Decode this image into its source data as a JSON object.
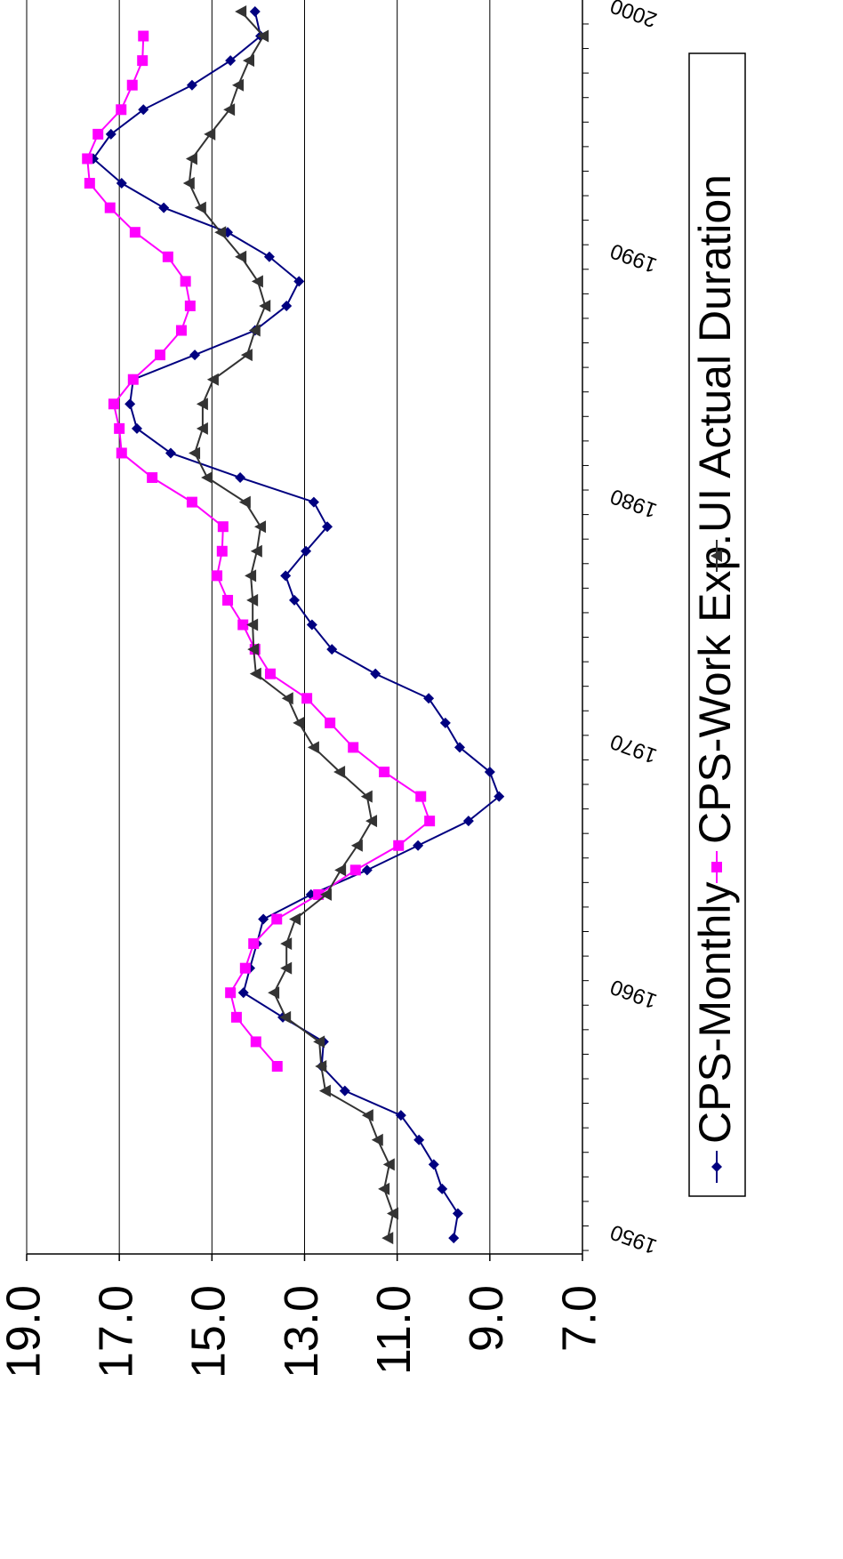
{
  "chart_data": {
    "type": "line",
    "x": [
      1950,
      1951,
      1952,
      1953,
      1954,
      1955,
      1956,
      1957,
      1958,
      1959,
      1960,
      1961,
      1962,
      1963,
      1964,
      1965,
      1966,
      1967,
      1968,
      1969,
      1970,
      1971,
      1972,
      1973,
      1974,
      1975,
      1976,
      1977,
      1978,
      1979,
      1980,
      1981,
      1982,
      1983,
      1984,
      1985,
      1986,
      1987,
      1988,
      1989,
      1990,
      1991,
      1992,
      1993,
      1994,
      1995,
      1996,
      1997,
      1998,
      1999,
      2000
    ],
    "series": [
      {
        "name": "CPS-Monthly",
        "color": "#000080",
        "marker": "diamond",
        "values": [
          9.78,
          9.69,
          10.03,
          10.21,
          10.53,
          10.92,
          12.13,
          12.63,
          12.59,
          13.47,
          14.32,
          14.18,
          14.03,
          13.89,
          12.86,
          11.65,
          10.55,
          9.46,
          8.8,
          9.0,
          9.65,
          9.96,
          10.32,
          11.47,
          12.41,
          12.84,
          13.22,
          13.41,
          12.97,
          12.51,
          12.8,
          14.39,
          15.89,
          16.62,
          16.77,
          16.7,
          15.37,
          14.07,
          13.39,
          13.12,
          13.76,
          14.66,
          16.04,
          16.95,
          17.56,
          17.18,
          16.48,
          15.43,
          14.6,
          13.95,
          14.07
        ]
      },
      {
        "name": "CPS-Work Exp.",
        "color": "#ff00ff",
        "marker": "square",
        "values": [
          null,
          null,
          null,
          null,
          null,
          null,
          null,
          13.59,
          14.05,
          14.47,
          14.6,
          14.28,
          14.1,
          13.6,
          12.7,
          11.9,
          10.97,
          10.3,
          10.49,
          11.28,
          11.95,
          12.45,
          12.95,
          13.74,
          14.07,
          14.33,
          14.66,
          14.89,
          14.78,
          14.76,
          15.43,
          16.29,
          16.95,
          17.0,
          17.12,
          16.7,
          16.12,
          15.66,
          15.47,
          15.57,
          15.95,
          16.66,
          17.2,
          17.64,
          17.69,
          17.46,
          16.96,
          16.72,
          16.5,
          16.48,
          null
        ]
      },
      {
        "name": "UI Actual Duration",
        "color": "#333333",
        "marker": "triangle",
        "values": [
          11.2,
          11.09,
          11.28,
          11.17,
          11.42,
          11.63,
          12.55,
          12.64,
          12.68,
          13.41,
          13.66,
          13.39,
          13.39,
          13.2,
          12.53,
          12.22,
          11.86,
          11.55,
          11.65,
          12.24,
          12.8,
          13.12,
          13.36,
          14.05,
          14.1,
          14.12,
          14.12,
          14.16,
          14.03,
          13.95,
          14.28,
          15.1,
          15.37,
          15.2,
          15.2,
          14.97,
          14.24,
          14.07,
          13.85,
          14.01,
          14.37,
          14.81,
          15.24,
          15.49,
          15.43,
          15.04,
          14.62,
          14.43,
          14.2,
          13.89,
          14.37
        ]
      }
    ],
    "xlim": [
      1949.35,
      2000.47
    ],
    "xticks": [
      1950,
      1960,
      1970,
      1980,
      1990,
      2000
    ],
    "ylim": [
      7,
      19
    ],
    "yticks": [
      {
        "value": 7,
        "label": "7.0"
      },
      {
        "value": 9,
        "label": "9.0"
      },
      {
        "value": 11,
        "label": "11.0"
      },
      {
        "value": 13,
        "label": "13.0"
      },
      {
        "value": 15,
        "label": "15.0"
      },
      {
        "value": 17,
        "label": "17.0"
      },
      {
        "value": 19,
        "label": "19.0"
      }
    ],
    "grid": true
  }
}
